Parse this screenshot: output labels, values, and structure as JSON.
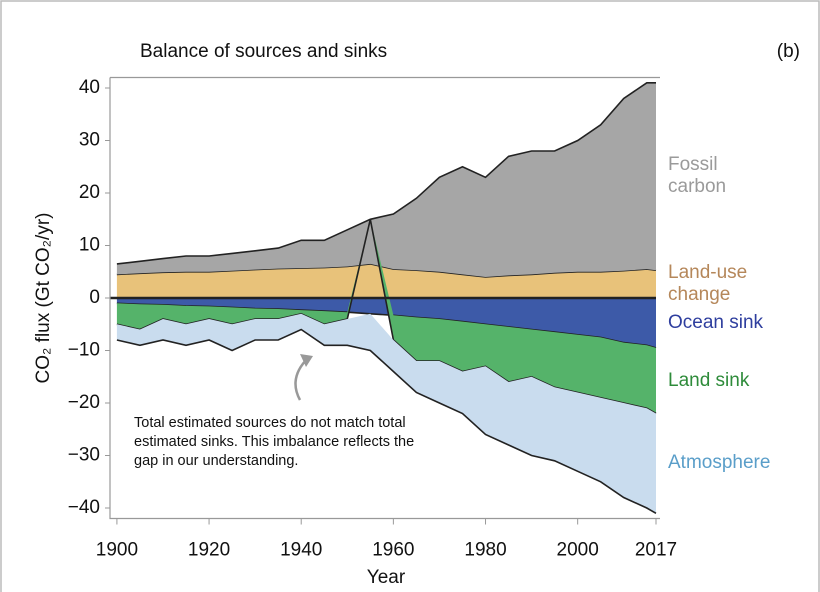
{
  "chart_data": {
    "type": "stacked-area",
    "title": "Balance of sources and sinks",
    "panel_label": "(b)",
    "x_label": "Year",
    "y_label": "CO₂ flux (Gt CO₂/yr)",
    "annotation": "Total estimated sources do not match total estimated sinks. This imbalance reflects the gap in our understanding.",
    "x": [
      1900,
      1905,
      1910,
      1915,
      1920,
      1925,
      1930,
      1935,
      1940,
      1945,
      1950,
      1955,
      1960,
      1965,
      1970,
      1975,
      1980,
      1985,
      1990,
      1995,
      2000,
      2005,
      2010,
      2015,
      2017
    ],
    "xlim": [
      1898.5,
      2017
    ],
    "xticks": [
      1900,
      1920,
      1940,
      1960,
      1980,
      2000,
      2017
    ],
    "ylim": [
      -42,
      42
    ],
    "yticks": [
      {
        "value": -40,
        "label": "−40"
      },
      {
        "value": -30,
        "label": "−30"
      },
      {
        "value": -20,
        "label": "−20"
      },
      {
        "value": -10,
        "label": "−10"
      },
      0,
      10,
      20,
      30,
      40
    ],
    "series": [
      {
        "name": "Land-use change",
        "color": "#e8c27a",
        "label_color": "#b5875a",
        "values": [
          4.5,
          4.7,
          4.9,
          5,
          5,
          5.2,
          5.4,
          5.6,
          5.7,
          5.8,
          6,
          6.5,
          5.5,
          5.3,
          5,
          4.5,
          4,
          4.3,
          4.5,
          4.8,
          5,
          5,
          5.2,
          5.5,
          5.3
        ]
      },
      {
        "name": "Fossil carbon",
        "color": "#a6a6a6",
        "label_color": "#9a9a9a",
        "values": [
          2,
          2.3,
          2.6,
          3,
          3,
          3.3,
          3.6,
          3.9,
          5.3,
          5.2,
          7,
          8.5,
          10.5,
          13.7,
          18,
          20.5,
          19,
          22.7,
          23.5,
          23.2,
          25,
          28,
          32.8,
          35.5,
          35.7
        ]
      },
      {
        "name": "Ocean sink",
        "color": "#3d5aa8",
        "label_color": "#2e3e9e",
        "values": [
          -1,
          -1.2,
          -1.3,
          -1.5,
          -1.6,
          -1.8,
          -2,
          -2.1,
          -2.3,
          -2.5,
          -2.7,
          -3,
          -3.3,
          -3.7,
          -4,
          -4.5,
          -5,
          -5.5,
          -6,
          -6.5,
          -7,
          -7.5,
          -8.5,
          -9,
          -9.5
        ]
      },
      {
        "name": "Land sink",
        "color": "#55b36a",
        "label_color": "#2e8b3a",
        "values": [
          -4,
          -4.8,
          -2.7,
          -3.5,
          -2.4,
          -3.2,
          -2,
          -1.9,
          -0.7,
          -2.5,
          -1.3,
          0,
          -4.7,
          -8.3,
          -8,
          -9.5,
          -8,
          -10.5,
          -9,
          -10.5,
          -11,
          -11.5,
          -11.5,
          -12,
          -12.5
        ]
      },
      {
        "name": "Atmosphere",
        "color": "#c9dcee",
        "label_color": "#5a9ec9",
        "values": [
          -3,
          -3,
          -4,
          -4,
          -4,
          -5,
          -4,
          -4,
          -3,
          -4,
          -5,
          -7,
          -6,
          -6,
          -8,
          -8,
          -13,
          -12,
          -15,
          -14,
          -15,
          -16,
          -18,
          -19,
          -19
        ]
      }
    ]
  }
}
